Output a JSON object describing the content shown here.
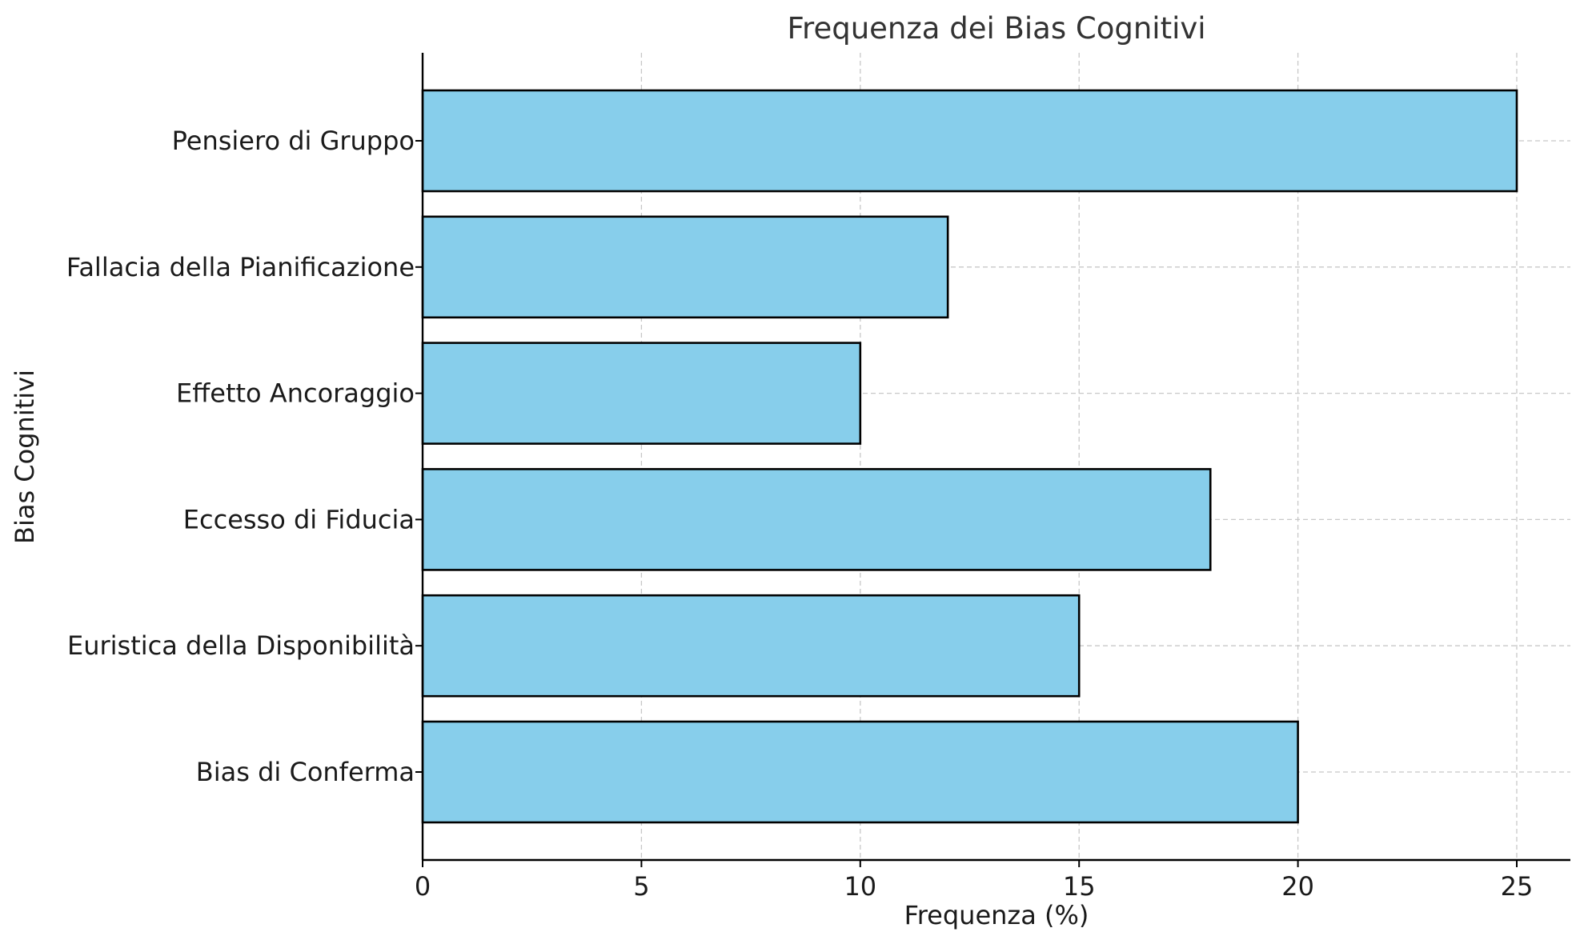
{
  "chart_data": {
    "type": "bar",
    "orientation": "horizontal",
    "title": "Frequenza dei Bias Cognitivi",
    "xlabel": "Frequenza (%)",
    "ylabel": "Bias Cognitivi",
    "categories": [
      "Bias di Conferma",
      "Euristica della Disponibilità",
      "Eccesso di Fiducia",
      "Effetto Ancoraggio",
      "Fallacia della Pianificazione",
      "Pensiero di Gruppo"
    ],
    "values": [
      20,
      15,
      18,
      10,
      12,
      25
    ],
    "xlim": [
      0,
      26.25
    ],
    "xticks": [
      0,
      5,
      10,
      15,
      20,
      25
    ],
    "grid": true,
    "bar_color": "#87CEEB",
    "edge_color": "#000000",
    "grid_color": "#c8c8c8"
  }
}
